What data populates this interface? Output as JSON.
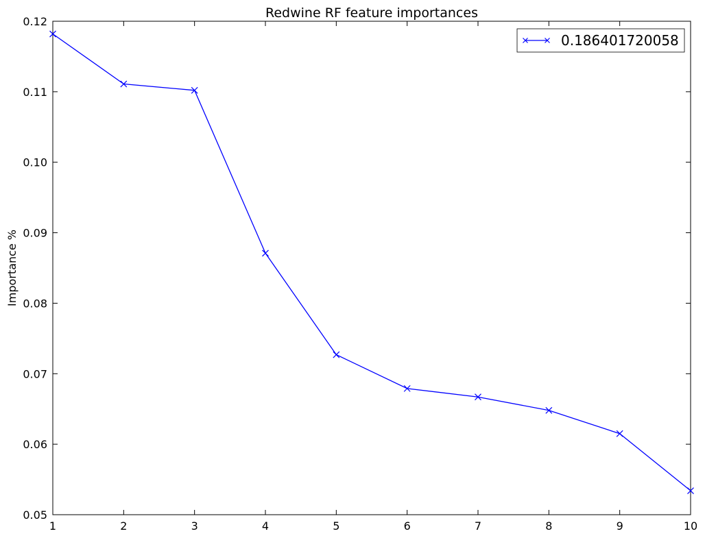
{
  "chart_data": {
    "type": "line",
    "title": "Redwine RF feature importances",
    "xlabel": "",
    "ylabel": "Importance %",
    "x": [
      1,
      2,
      3,
      4,
      5,
      6,
      7,
      8,
      9,
      10
    ],
    "xlim": [
      1,
      10
    ],
    "ylim": [
      0.05,
      0.12
    ],
    "xticks": [
      1,
      2,
      3,
      4,
      5,
      6,
      7,
      8,
      9,
      10
    ],
    "yticks": [
      0.05,
      0.06,
      0.07,
      0.08,
      0.09,
      0.1,
      0.11,
      0.12
    ],
    "ytick_labels": [
      "0.05",
      "0.06",
      "0.07",
      "0.08",
      "0.09",
      "0.10",
      "0.11",
      "0.12"
    ],
    "grid": false,
    "legend_position": "top-right",
    "series": [
      {
        "name": "0.186401720058",
        "color": "#0000ff",
        "marker": "x",
        "values": [
          0.1182,
          0.1111,
          0.1102,
          0.0871,
          0.0727,
          0.0679,
          0.0667,
          0.0648,
          0.0615,
          0.0534
        ]
      }
    ]
  }
}
